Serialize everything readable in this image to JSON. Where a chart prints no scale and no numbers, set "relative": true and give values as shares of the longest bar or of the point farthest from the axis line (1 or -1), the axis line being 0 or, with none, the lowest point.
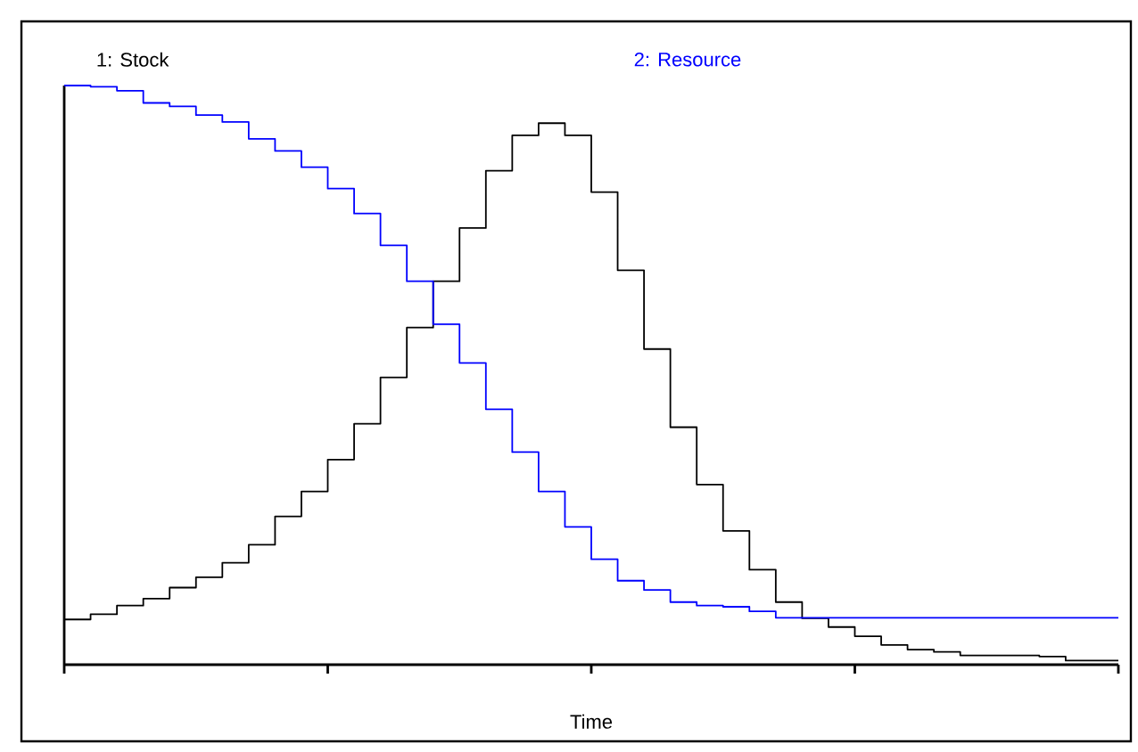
{
  "chart_data": {
    "type": "step",
    "xlabel": "Time",
    "relative": true,
    "legend": "top",
    "grid": false,
    "categories": [
      null,
      null,
      null,
      null,
      null,
      null,
      null,
      null,
      null,
      null,
      null,
      null,
      null,
      null,
      null,
      null,
      null,
      null,
      null,
      null,
      null,
      null,
      null,
      null,
      null,
      null,
      null,
      null,
      null,
      null,
      null,
      null,
      null,
      null,
      null,
      null,
      null,
      null,
      null,
      null,
      null
    ],
    "series": [
      {
        "name": "1: Stock",
        "color": "#000000",
        "values": [
          0.078,
          0.087,
          0.102,
          0.114,
          0.133,
          0.151,
          0.176,
          0.207,
          0.256,
          0.299,
          0.354,
          0.416,
          0.496,
          0.582,
          0.662,
          0.754,
          0.853,
          0.914,
          0.935,
          0.914,
          0.816,
          0.681,
          0.545,
          0.41,
          0.311,
          0.231,
          0.164,
          0.108,
          0.08,
          0.065,
          0.049,
          0.034,
          0.026,
          0.022,
          0.016,
          0.016,
          0.016,
          0.014,
          0.007,
          0.007,
          0.007
        ]
      },
      {
        "name": "2: Resource",
        "color": "#0000ff",
        "values": [
          1.0,
          0.998,
          0.991,
          0.97,
          0.964,
          0.949,
          0.937,
          0.908,
          0.887,
          0.859,
          0.822,
          0.779,
          0.724,
          0.662,
          0.588,
          0.521,
          0.441,
          0.367,
          0.299,
          0.238,
          0.182,
          0.145,
          0.129,
          0.108,
          0.102,
          0.1,
          0.092,
          0.081,
          0.081,
          0.081,
          0.081,
          0.081,
          0.081,
          0.081,
          0.081,
          0.081,
          0.081,
          0.081,
          0.081,
          0.081,
          0.081
        ]
      }
    ]
  }
}
